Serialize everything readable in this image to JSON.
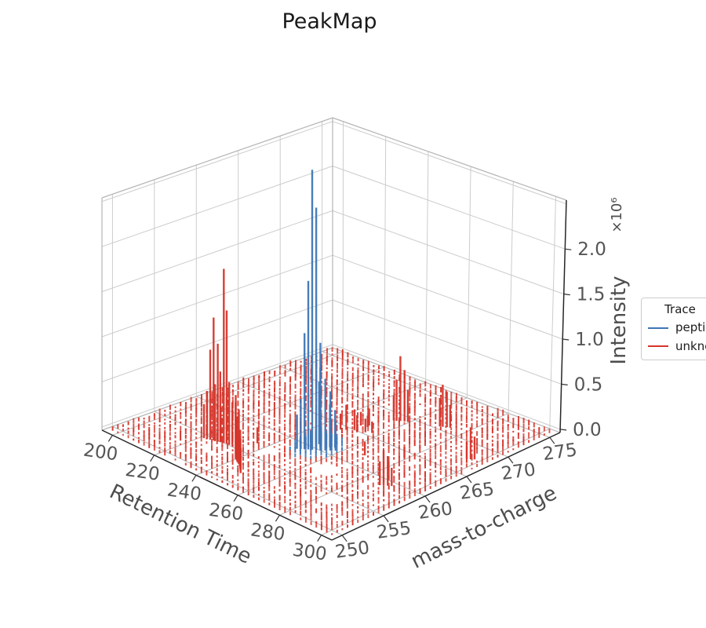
{
  "chart_data": {
    "type": "stem3d",
    "title": "PeakMap",
    "xlabel": "Retention Time",
    "ylabel": "mass-to-charge",
    "zlabel": "Intensity",
    "z_scale_note": "×10⁶",
    "x_ticks": [
      200,
      220,
      240,
      260,
      280,
      300
    ],
    "y_ticks": [
      250,
      255,
      260,
      265,
      270,
      275
    ],
    "z_ticks": [
      {
        "value": 0.0,
        "label": "0.0"
      },
      {
        "value": 0.5,
        "label": "0.5"
      },
      {
        "value": 1.0,
        "label": "1.0"
      },
      {
        "value": 1.5,
        "label": "1.5"
      },
      {
        "value": 2.0,
        "label": "2.0"
      }
    ],
    "z_gridline_values": [
      0.0,
      0.5,
      1.0,
      1.5,
      2.0,
      2.5
    ],
    "x_range": [
      195,
      305
    ],
    "y_range": [
      248.75,
      276.25
    ],
    "z_range_displayed_e6": [
      0.0,
      2.55
    ],
    "intensity_unit": 1000000,
    "grid": true,
    "legend": {
      "title": "Trace",
      "position": "right-edge-clipped",
      "entries": [
        {
          "label": "peptide",
          "color": "#3f76b6"
        },
        {
          "label": "unknown",
          "color": "#d5352b"
        }
      ]
    },
    "series": [
      {
        "name": "peptide",
        "color": "#3f76b6",
        "stems_rt_mz_intensityE6": [
          [
            252.3,
            259.6,
            2.46
          ],
          [
            253.4,
            259.8,
            2.13
          ],
          [
            251.2,
            259.4,
            1.48
          ],
          [
            250.2,
            259.2,
            1.02
          ],
          [
            253.0,
            260.4,
            0.92
          ],
          [
            254.6,
            260.0,
            0.73
          ],
          [
            255.8,
            260.3,
            0.63
          ],
          [
            257.0,
            260.6,
            0.52
          ],
          [
            250.8,
            260.8,
            0.55
          ],
          [
            249.2,
            259.0,
            0.44
          ],
          [
            255.2,
            261.0,
            0.38
          ],
          [
            256.5,
            261.3,
            0.33
          ],
          [
            248.2,
            258.8,
            0.3
          ],
          [
            258.3,
            260.9,
            0.26
          ]
        ],
        "dot_patch": {
          "rt": 252.5,
          "mz": 260.2,
          "rt_radius": 8.5,
          "mz_radius": 2.7,
          "peak_intensityE6": 0.18,
          "base_intensityE6": 0.02
        }
      },
      {
        "name": "unknown",
        "color": "#d5352b",
        "stems_rt_mz_intensityE6": [
          [
            228.3,
            255.0,
            1.53
          ],
          [
            229.3,
            255.1,
            1.17
          ],
          [
            224.6,
            254.7,
            1.08
          ],
          [
            226.2,
            254.8,
            0.86
          ],
          [
            223.4,
            254.6,
            0.79
          ],
          [
            227.0,
            254.9,
            0.62
          ],
          [
            230.5,
            255.1,
            0.55
          ],
          [
            225.3,
            254.7,
            0.5
          ],
          [
            232.8,
            255.3,
            0.45
          ],
          [
            222.3,
            254.5,
            0.42
          ],
          [
            231.6,
            255.2,
            0.38
          ],
          [
            221.2,
            254.4,
            0.3
          ],
          [
            233.9,
            255.4,
            0.33
          ],
          [
            228.9,
            255.2,
            0.4
          ],
          [
            226.8,
            255.0,
            0.3
          ],
          [
            240.0,
            253.5,
            0.5
          ],
          [
            242.0,
            253.2,
            0.4
          ],
          [
            239.0,
            253.8,
            0.34
          ],
          [
            243.5,
            253.0,
            0.3
          ],
          [
            244.8,
            252.8,
            0.26
          ],
          [
            241.0,
            253.4,
            0.22
          ],
          [
            246.2,
            252.5,
            0.34
          ],
          [
            247.5,
            252.2,
            0.28
          ],
          [
            248.8,
            251.9,
            0.22
          ],
          [
            257.0,
            269.0,
            0.57
          ],
          [
            258.2,
            269.2,
            0.45
          ],
          [
            256.0,
            268.8,
            0.36
          ],
          [
            259.4,
            269.3,
            0.28
          ],
          [
            255.0,
            268.7,
            0.22
          ],
          [
            271.0,
            270.6,
            0.37
          ],
          [
            272.2,
            270.8,
            0.31
          ],
          [
            270.0,
            270.5,
            0.25
          ],
          [
            273.4,
            270.9,
            0.2
          ],
          [
            296.5,
            267.6,
            0.28
          ],
          [
            297.6,
            267.8,
            0.2
          ],
          [
            295.4,
            267.4,
            0.15
          ],
          [
            289.0,
            259.0,
            0.31
          ],
          [
            290.2,
            259.2,
            0.26
          ],
          [
            288.0,
            258.8,
            0.21
          ],
          [
            291.3,
            259.4,
            0.16
          ],
          [
            249.0,
            264.5,
            0.22
          ],
          [
            251.0,
            265.0,
            0.18
          ],
          [
            253.0,
            264.8,
            0.15
          ],
          [
            255.0,
            265.3,
            0.12
          ],
          [
            247.5,
            264.2,
            0.14
          ],
          [
            257.0,
            265.6,
            0.1
          ],
          [
            250.0,
            266.0,
            0.12
          ],
          [
            252.5,
            266.2,
            0.1
          ],
          [
            236.0,
            257.1,
            0.14
          ],
          [
            268.0,
            262.0,
            0.12
          ],
          [
            252.0,
            266.5,
            0.15
          ],
          [
            279.0,
            264.0,
            0.1
          ]
        ],
        "noise_grid": {
          "rt_start": 197.5,
          "rt_end": 302.5,
          "rt_steps": 43,
          "mz_start": 249.4,
          "mz_end": 275.6,
          "mz_steps": 43,
          "min_intensityE6": 0.012,
          "max_intensityE6": 0.055,
          "dropout": 0.05,
          "seed": 42,
          "gaps": [
            {
              "rt": 267.0,
              "mz": 257.3,
              "rt_radius": 5.0,
              "mz_radius": 1.1
            },
            {
              "rt": 244.0,
              "mz": 256.3,
              "rt_radius": 4.0,
              "mz_radius": 0.9
            },
            {
              "rt": 284.0,
              "mz": 253.8,
              "rt_radius": 4.5,
              "mz_radius": 1.0
            }
          ]
        }
      }
    ]
  }
}
